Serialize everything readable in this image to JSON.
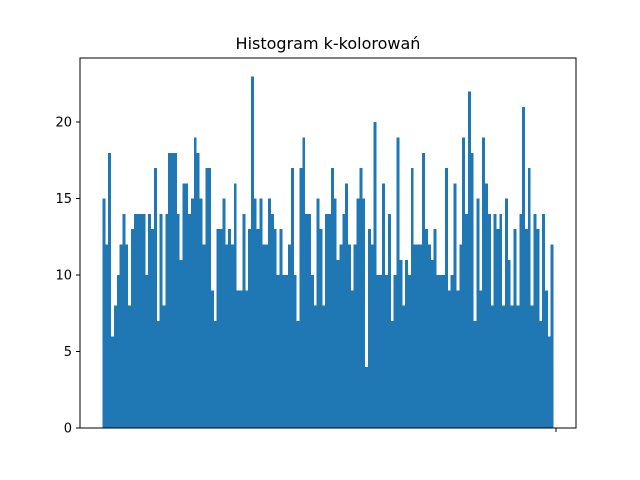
{
  "chart_data": {
    "type": "bar",
    "title": "Histogram k-kolorowań",
    "xlabel": "",
    "ylabel": "",
    "ylim": [
      0,
      24.2
    ],
    "yticks": [
      0,
      5,
      10,
      15,
      20
    ],
    "ytick_labels": [
      "0",
      "5",
      "10",
      "15",
      "20"
    ],
    "xtick_labels": [
      ""
    ],
    "bar_color": "#1f77b4",
    "grid": false,
    "values": [
      15,
      12,
      18,
      6,
      8,
      10,
      12,
      14,
      12,
      8,
      13,
      14,
      14,
      14,
      14,
      10,
      14,
      13,
      17,
      7,
      14,
      8,
      14,
      18,
      18,
      18,
      14,
      11,
      16,
      16,
      14,
      15,
      19,
      18,
      15,
      12,
      17,
      17,
      9,
      7,
      13,
      13,
      15,
      12,
      13,
      12,
      16,
      9,
      9,
      14,
      9,
      13,
      23,
      15,
      13,
      15,
      12,
      12,
      15,
      14,
      13,
      10,
      13,
      10,
      10,
      12,
      17,
      10,
      7,
      17,
      19,
      14,
      14,
      10,
      8,
      15,
      13,
      8,
      14,
      14,
      17,
      15,
      11,
      12,
      14,
      16,
      12,
      9,
      12,
      15,
      17,
      15,
      4,
      13,
      12,
      20,
      10,
      10,
      16,
      10,
      14,
      7,
      10,
      19,
      11,
      8,
      11,
      10,
      17,
      12,
      12,
      12,
      18,
      13,
      12,
      11,
      13,
      10,
      10,
      10,
      17,
      9,
      10,
      16,
      9,
      12,
      19,
      14,
      22,
      18,
      7,
      15,
      9,
      19,
      16,
      14,
      8,
      14,
      13,
      14,
      8,
      15,
      11,
      8,
      13,
      8,
      14,
      21,
      13,
      17,
      8,
      14,
      13,
      7,
      14,
      9,
      6,
      12
    ]
  }
}
